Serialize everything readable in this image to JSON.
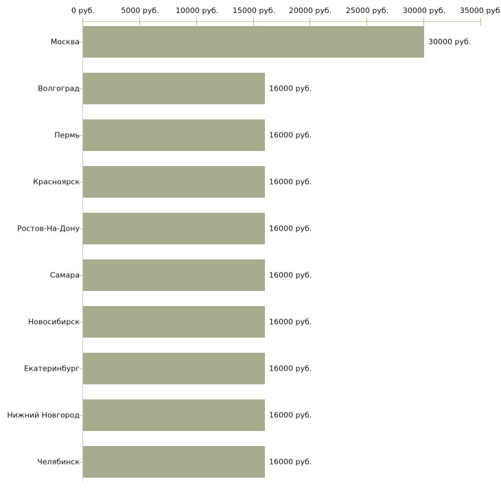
{
  "chart": {
    "background_color": "#ffffff",
    "bar_color": "#a8ac8f",
    "value_axis_color": "#ccc9a8",
    "category_axis_color": "#c9c9c9",
    "tick_color": "#b9b694",
    "text_color": "#111111"
  },
  "chart_data": {
    "type": "bar",
    "orientation": "horizontal",
    "title": "",
    "xlabel": "",
    "ylabel": "",
    "grid": false,
    "legend": false,
    "xlim": [
      0,
      35000
    ],
    "x_tick_values": [
      0,
      5000,
      10000,
      15000,
      20000,
      25000,
      30000,
      35000
    ],
    "x_tick_labels": [
      "0 руб.",
      "5000 руб.",
      "10000 руб.",
      "15000 руб.",
      "20000 руб.",
      "25000 руб.",
      "30000 руб.",
      "35000 руб."
    ],
    "categories": [
      "Москва",
      "Волгоград",
      "Пермь",
      "Красноярск",
      "Ростов-На-Дону",
      "Самара",
      "Новосибирск",
      "Екатеринбург",
      "Нижний Новгород",
      "Челябинск"
    ],
    "values": [
      30000,
      16000,
      16000,
      16000,
      16000,
      16000,
      16000,
      16000,
      16000,
      16000
    ],
    "value_labels": [
      "30000 руб.",
      "16000 руб.",
      "16000 руб.",
      "16000 руб.",
      "16000 руб.",
      "16000 руб.",
      "16000 руб.",
      "16000 руб.",
      "16000 руб.",
      "16000 руб."
    ],
    "value_suffix": " руб."
  }
}
